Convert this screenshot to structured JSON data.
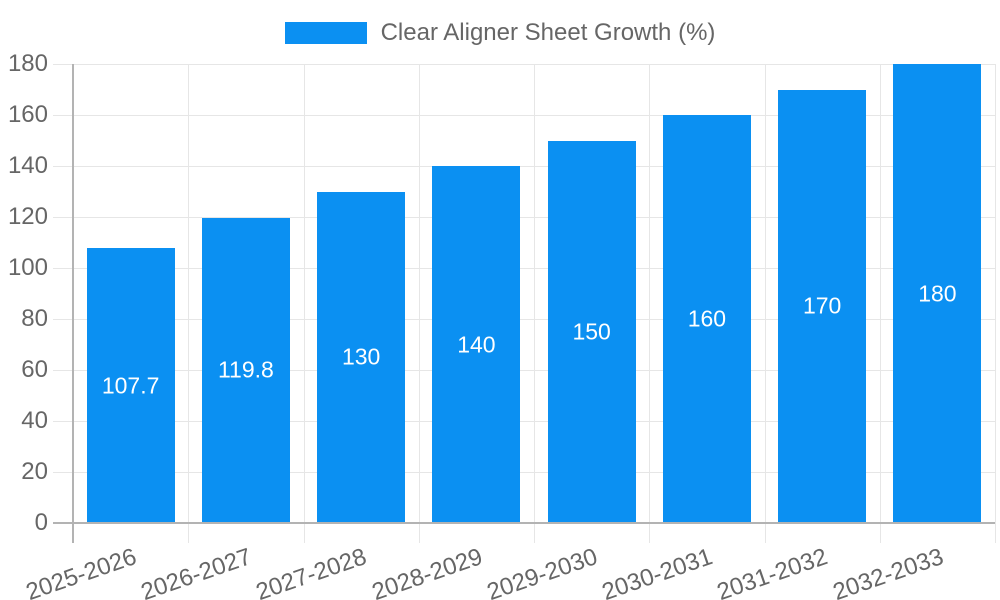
{
  "chart_data": {
    "type": "bar",
    "title": "",
    "legend_label": "Clear Aligner Sheet Growth (%)",
    "legend_position": "top",
    "categories": [
      "2025-2026",
      "2026-2027",
      "2027-2028",
      "2028-2029",
      "2029-2030",
      "2030-2031",
      "2031-2032",
      "2032-2033"
    ],
    "values": [
      107.7,
      119.8,
      130,
      140,
      150,
      160,
      170,
      180
    ],
    "value_labels": [
      "107.7",
      "119.8",
      "130",
      "140",
      "150",
      "160",
      "170",
      "180"
    ],
    "xlabel": "",
    "ylabel": "",
    "ylim": [
      0,
      180
    ],
    "ytick_step": 20,
    "yticks": [
      0,
      20,
      40,
      60,
      80,
      100,
      120,
      140,
      160,
      180
    ],
    "grid": true,
    "x_label_rotation_deg": -19,
    "colors": {
      "bar": "#0b90f2",
      "grid": "#e6e6e6",
      "axis": "#b3b3b3",
      "tick_text": "#666666",
      "value_text": "#ffffff",
      "background": "#ffffff"
    }
  }
}
